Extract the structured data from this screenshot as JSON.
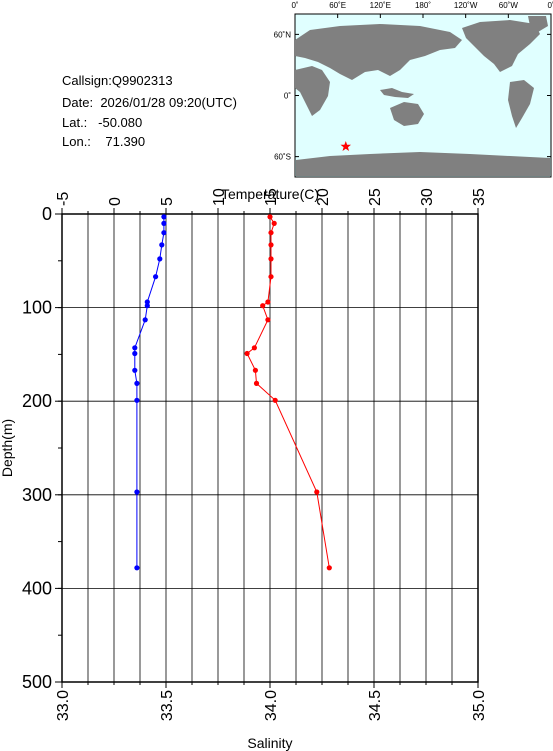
{
  "info": {
    "callsign_label": "Callsign:",
    "callsign": "Q9902313",
    "date_label": "Date:",
    "date": "2026/01/28 09:20(UTC)",
    "lat_label": "Lat.:",
    "lat": "-50.080",
    "lon_label": "Lon.:",
    "lon": "71.390"
  },
  "map": {
    "top_ticks": [
      "0˚",
      "60˚E",
      "120˚E",
      "180˚",
      "120˚W",
      "60˚W",
      "0˚"
    ],
    "lat_ticks": [
      "60˚N",
      "0˚",
      "60˚S"
    ],
    "ocean_color": "#e0ffff",
    "land_color": "#808080",
    "marker_color": "#ff0000",
    "marker_lon": 71.39,
    "marker_lat": -50.08
  },
  "chart_data": {
    "type": "line",
    "temp_axis": {
      "label": "Temperature(C)",
      "range": [
        -5,
        35
      ],
      "ticks": [
        "-5",
        "0",
        "5",
        "10",
        "15",
        "20",
        "25",
        "30",
        "35"
      ]
    },
    "sal_axis": {
      "label": "Salinity",
      "range": [
        33.0,
        35.0
      ],
      "ticks": [
        "33.0",
        "33.5",
        "34.0",
        "34.5",
        "35.0"
      ]
    },
    "depth_axis": {
      "label": "Depth(m)",
      "range": [
        0,
        500
      ],
      "ticks": [
        "0",
        "100",
        "200",
        "300",
        "400",
        "500"
      ]
    },
    "grid": true,
    "series": [
      {
        "axis": "temperature",
        "color": "#ff0000",
        "points": [
          {
            "depth": 3,
            "value": 15.0
          },
          {
            "depth": 10,
            "value": 15.4
          },
          {
            "depth": 20,
            "value": 15.1
          },
          {
            "depth": 33,
            "value": 15.1
          },
          {
            "depth": 48,
            "value": 15.1
          },
          {
            "depth": 67,
            "value": 15.1
          },
          {
            "depth": 94,
            "value": 14.8
          },
          {
            "depth": 98,
            "value": 14.3
          },
          {
            "depth": 113,
            "value": 14.8
          },
          {
            "depth": 143,
            "value": 13.5
          },
          {
            "depth": 149,
            "value": 12.8
          },
          {
            "depth": 167,
            "value": 13.6
          },
          {
            "depth": 181,
            "value": 13.7
          },
          {
            "depth": 199,
            "value": 15.5
          },
          {
            "depth": 297,
            "value": 19.5
          },
          {
            "depth": 378,
            "value": 20.7
          }
        ]
      },
      {
        "axis": "salinity",
        "color": "#0000ff",
        "points": [
          {
            "depth": 3,
            "value": 33.49
          },
          {
            "depth": 10,
            "value": 33.49
          },
          {
            "depth": 20,
            "value": 33.49
          },
          {
            "depth": 33,
            "value": 33.48
          },
          {
            "depth": 48,
            "value": 33.47
          },
          {
            "depth": 67,
            "value": 33.45
          },
          {
            "depth": 94,
            "value": 33.41
          },
          {
            "depth": 98,
            "value": 33.41
          },
          {
            "depth": 113,
            "value": 33.4
          },
          {
            "depth": 143,
            "value": 33.35
          },
          {
            "depth": 149,
            "value": 33.35
          },
          {
            "depth": 167,
            "value": 33.35
          },
          {
            "depth": 181,
            "value": 33.36
          },
          {
            "depth": 199,
            "value": 33.36
          },
          {
            "depth": 297,
            "value": 33.36
          },
          {
            "depth": 378,
            "value": 33.36
          }
        ]
      }
    ]
  }
}
